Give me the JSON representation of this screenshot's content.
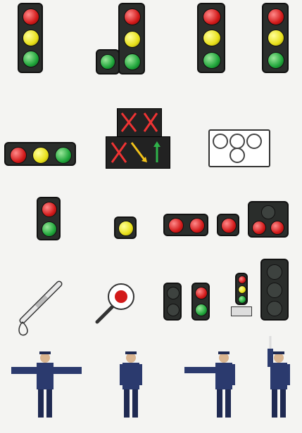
{
  "captions": {
    "c1": [
      "",
      "",
      ""
    ],
    "c2": [
      "",
      ""
    ],
    "c3": [
      "",
      "",
      ""
    ],
    "c4": [
      "",
      "",
      ""
    ],
    "c5": [
      ""
    ],
    "c6": [
      "",
      "",
      "",
      ""
    ],
    "c7": [
      "",
      "",
      "",
      "",
      "",
      ""
    ],
    "c8": [
      "",
      "",
      "",
      "",
      ""
    ],
    "c9": [
      "",
      ""
    ],
    "c10": [
      "",
      ""
    ],
    "c11": [
      "",
      ""
    ],
    "c12": [
      ""
    ],
    "c13": [
      ""
    ],
    "c14": [
      ""
    ]
  }
}
